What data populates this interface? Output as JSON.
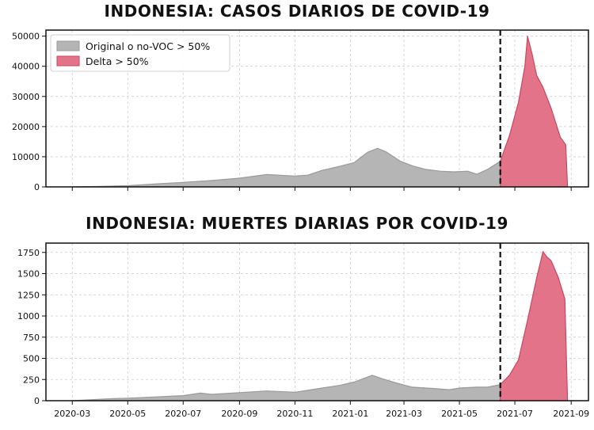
{
  "colors": {
    "original": "#b5b5b5",
    "original_edge": "#9a9a9a",
    "delta": "#e27388",
    "delta_edge": "#c9475f",
    "cutoff_line": "#111111",
    "grid": "#cccccc"
  },
  "chart_data": [
    {
      "type": "area",
      "title": "INDONESIA: CASOS DIARIOS DE COVID-19",
      "xlabel": "",
      "ylabel": "",
      "x_range": [
        "2020-02-01",
        "2021-09-20"
      ],
      "ylim": [
        0,
        52000
      ],
      "yticks": [
        0,
        10000,
        20000,
        30000,
        40000,
        50000
      ],
      "ytick_labels": [
        "0",
        "10000",
        "20000",
        "30000",
        "40000",
        "50000"
      ],
      "grid": true,
      "legend_position": "top-left",
      "cutoff_date": "2021-06-15",
      "series": [
        {
          "name": "Original o no-VOC > 50%",
          "points": [
            [
              "2020-03-01",
              0
            ],
            [
              "2020-04-01",
              150
            ],
            [
              "2020-05-01",
              400
            ],
            [
              "2020-06-01",
              1000
            ],
            [
              "2020-07-01",
              1500
            ],
            [
              "2020-08-01",
              2100
            ],
            [
              "2020-09-01",
              2900
            ],
            [
              "2020-10-01",
              4100
            ],
            [
              "2020-11-01",
              3600
            ],
            [
              "2020-11-15",
              3900
            ],
            [
              "2020-12-01",
              5500
            ],
            [
              "2020-12-20",
              6800
            ],
            [
              "2021-01-05",
              8000
            ],
            [
              "2021-01-20",
              11500
            ],
            [
              "2021-01-31",
              12800
            ],
            [
              "2021-02-10",
              11500
            ],
            [
              "2021-02-25",
              8500
            ],
            [
              "2021-03-10",
              7000
            ],
            [
              "2021-03-25",
              5800
            ],
            [
              "2021-04-10",
              5200
            ],
            [
              "2021-04-25",
              5000
            ],
            [
              "2021-05-10",
              5200
            ],
            [
              "2021-05-20",
              4200
            ],
            [
              "2021-06-01",
              5800
            ],
            [
              "2021-06-15",
              8500
            ]
          ]
        },
        {
          "name": "Delta > 50%",
          "points": [
            [
              "2021-06-15",
              8500
            ],
            [
              "2021-06-25",
              17000
            ],
            [
              "2021-07-05",
              28000
            ],
            [
              "2021-07-12",
              40000
            ],
            [
              "2021-07-15",
              50000
            ],
            [
              "2021-07-20",
              44000
            ],
            [
              "2021-07-25",
              37000
            ],
            [
              "2021-08-01",
              33000
            ],
            [
              "2021-08-10",
              26000
            ],
            [
              "2021-08-20",
              16500
            ],
            [
              "2021-08-26",
              14000
            ],
            [
              "2021-08-28",
              0
            ]
          ]
        }
      ]
    },
    {
      "type": "area",
      "title": "INDONESIA: MUERTES DIARIAS POR COVID-19",
      "xlabel": "",
      "ylabel": "",
      "x_range": [
        "2020-02-01",
        "2021-09-20"
      ],
      "ylim": [
        0,
        1860
      ],
      "yticks": [
        0,
        250,
        500,
        750,
        1000,
        1250,
        1500,
        1750
      ],
      "ytick_labels": [
        "0",
        "250",
        "500",
        "750",
        "1000",
        "1250",
        "1500",
        "1750"
      ],
      "xticks": [
        "2020-03-01",
        "2020-05-01",
        "2020-07-01",
        "2020-09-01",
        "2020-11-01",
        "2021-01-01",
        "2021-03-01",
        "2021-05-01",
        "2021-07-01",
        "2021-09-01"
      ],
      "xtick_labels": [
        "2020-03",
        "2020-05",
        "2020-07",
        "2020-09",
        "2020-11",
        "2021-01",
        "2021-03",
        "2021-05",
        "2021-07",
        "2021-09"
      ],
      "grid": true,
      "cutoff_date": "2021-06-15",
      "series": [
        {
          "name": "Original o no-VOC > 50%",
          "points": [
            [
              "2020-03-01",
              0
            ],
            [
              "2020-04-15",
              25
            ],
            [
              "2020-05-01",
              30
            ],
            [
              "2020-06-01",
              45
            ],
            [
              "2020-07-01",
              60
            ],
            [
              "2020-07-20",
              90
            ],
            [
              "2020-08-01",
              75
            ],
            [
              "2020-09-01",
              95
            ],
            [
              "2020-10-01",
              115
            ],
            [
              "2020-11-01",
              100
            ],
            [
              "2020-12-01",
              150
            ],
            [
              "2020-12-20",
              180
            ],
            [
              "2021-01-05",
              220
            ],
            [
              "2021-01-25",
              300
            ],
            [
              "2021-02-05",
              260
            ],
            [
              "2021-02-20",
              210
            ],
            [
              "2021-03-10",
              160
            ],
            [
              "2021-04-01",
              145
            ],
            [
              "2021-04-20",
              130
            ],
            [
              "2021-05-01",
              150
            ],
            [
              "2021-05-20",
              160
            ],
            [
              "2021-06-01",
              160
            ],
            [
              "2021-06-15",
              190
            ]
          ]
        },
        {
          "name": "Delta > 50%",
          "points": [
            [
              "2021-06-15",
              190
            ],
            [
              "2021-06-25",
              300
            ],
            [
              "2021-07-05",
              480
            ],
            [
              "2021-07-15",
              950
            ],
            [
              "2021-07-25",
              1450
            ],
            [
              "2021-08-01",
              1760
            ],
            [
              "2021-08-05",
              1700
            ],
            [
              "2021-08-10",
              1650
            ],
            [
              "2021-08-18",
              1450
            ],
            [
              "2021-08-25",
              1200
            ],
            [
              "2021-08-28",
              0
            ]
          ]
        }
      ]
    }
  ]
}
